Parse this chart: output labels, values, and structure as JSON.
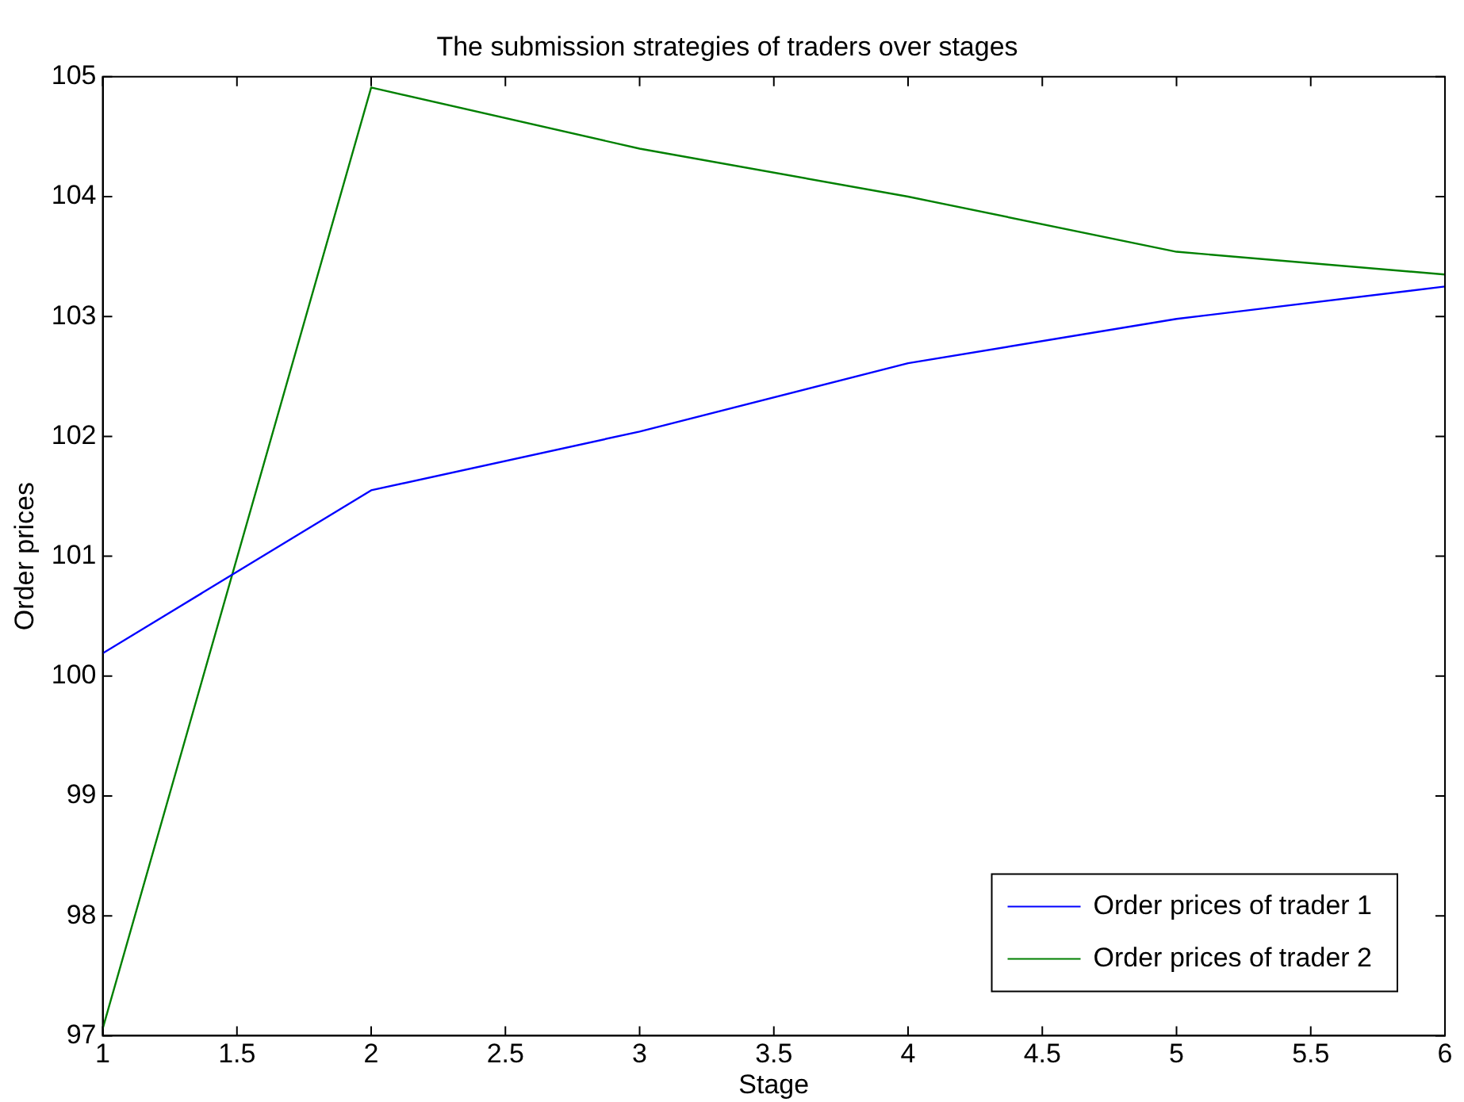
{
  "chart_data": {
    "type": "line",
    "title": "The submission strategies of traders over stages",
    "xlabel": "Stage",
    "ylabel": "Order prices",
    "x": [
      1,
      2,
      3,
      4,
      5,
      6
    ],
    "series": [
      {
        "name": "Order prices of trader 1",
        "color": "#0000ff",
        "values": [
          100.19,
          101.55,
          102.04,
          102.61,
          102.98,
          103.25
        ]
      },
      {
        "name": "Order prices of trader 2",
        "color": "#008000",
        "values": [
          97.06,
          104.91,
          104.4,
          104.0,
          103.54,
          103.35
        ]
      }
    ],
    "xlim": [
      1,
      6
    ],
    "xticks": [
      1,
      1.5,
      2,
      2.5,
      3,
      3.5,
      4,
      4.5,
      5,
      5.5,
      6
    ],
    "ylim": [
      97,
      105
    ],
    "yticks": [
      97,
      98,
      99,
      100,
      101,
      102,
      103,
      104,
      105
    ],
    "grid": false,
    "legend": "bottom right",
    "marker": "none",
    "line_style": "solid"
  }
}
